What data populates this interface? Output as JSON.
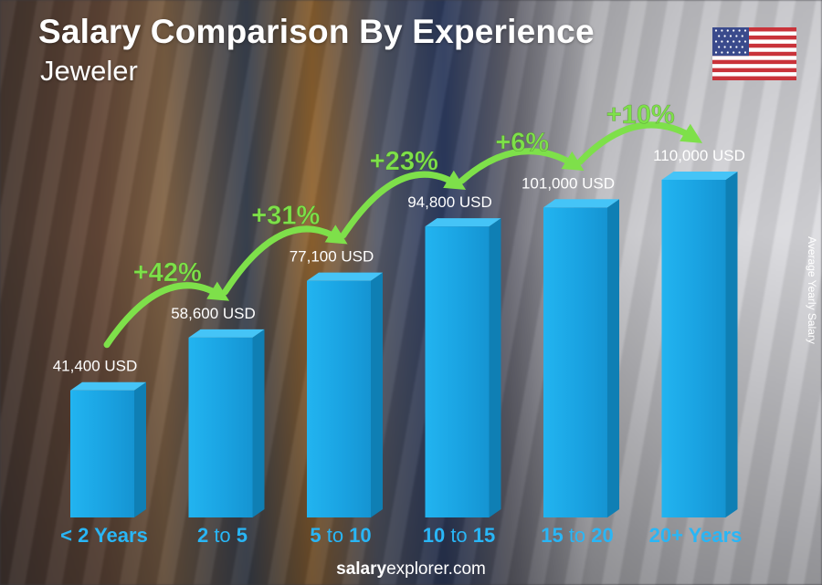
{
  "header": {
    "title": "Salary Comparison By Experience",
    "subtitle": "Jeweler"
  },
  "axis_label": "Average Yearly Salary",
  "footer": {
    "brand_bold": "salary",
    "brand_rest": "explorer.com"
  },
  "flag_icon": "us-flag-icon",
  "colors": {
    "bar": "#1aa7e6",
    "bar_dark": "#0f7fb4",
    "arrow": "#7ee04a",
    "category": "#29b6f6"
  },
  "chart_data": {
    "type": "bar",
    "categories": [
      {
        "parts": [
          {
            "text": "< 2 Years",
            "bold": true
          }
        ]
      },
      {
        "parts": [
          {
            "text": "2",
            "bold": true
          },
          {
            "text": " to ",
            "bold": false
          },
          {
            "text": "5",
            "bold": true
          }
        ]
      },
      {
        "parts": [
          {
            "text": "5",
            "bold": true
          },
          {
            "text": " to ",
            "bold": false
          },
          {
            "text": "10",
            "bold": true
          }
        ]
      },
      {
        "parts": [
          {
            "text": "10",
            "bold": true
          },
          {
            "text": " to ",
            "bold": false
          },
          {
            "text": "15",
            "bold": true
          }
        ]
      },
      {
        "parts": [
          {
            "text": "15",
            "bold": true
          },
          {
            "text": " to ",
            "bold": false
          },
          {
            "text": "20",
            "bold": true
          }
        ]
      },
      {
        "parts": [
          {
            "text": "20+ Years",
            "bold": true
          }
        ]
      }
    ],
    "values": [
      41400,
      58600,
      77100,
      94800,
      101000,
      110000
    ],
    "value_labels": [
      "41,400 USD",
      "58,600 USD",
      "77,100 USD",
      "94,800 USD",
      "101,000 USD",
      "110,000 USD"
    ],
    "increases": [
      "+42%",
      "+31%",
      "+23%",
      "+6%",
      "+10%"
    ],
    "unit": "USD",
    "ylabel": "Average Yearly Salary"
  }
}
